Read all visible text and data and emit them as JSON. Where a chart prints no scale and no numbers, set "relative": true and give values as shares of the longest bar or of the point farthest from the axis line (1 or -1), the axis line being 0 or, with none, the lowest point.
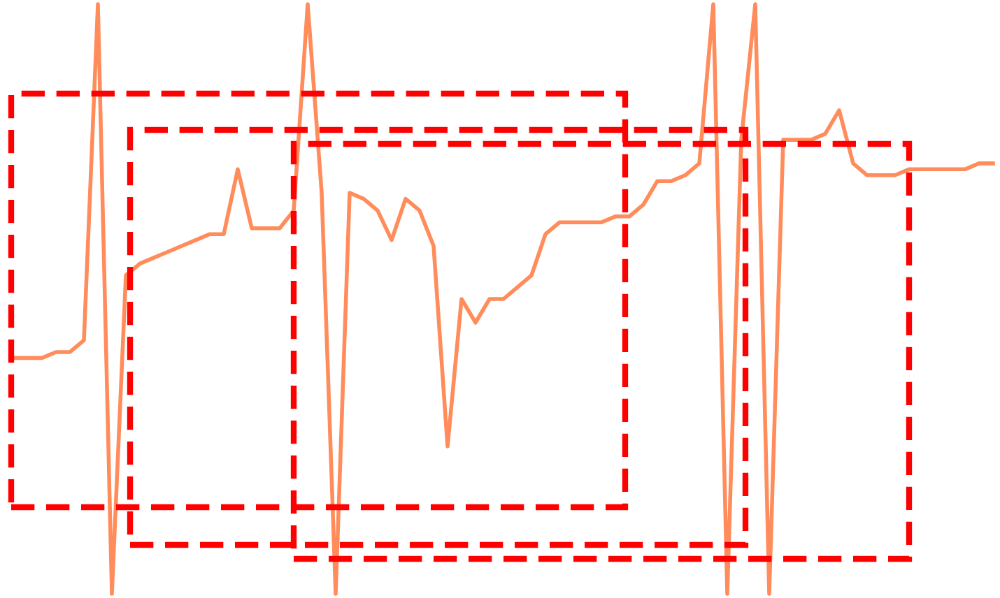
{
  "chart_data": {
    "type": "line",
    "relative": true,
    "categories": [
      null,
      null,
      null,
      null,
      null,
      null,
      null,
      null,
      null,
      null,
      null,
      null,
      null,
      null,
      null,
      null,
      null,
      null,
      null,
      null,
      null,
      null,
      null,
      null,
      null,
      null,
      null,
      null,
      null,
      null,
      null,
      null,
      null,
      null,
      null,
      null,
      null,
      null,
      null,
      null,
      null,
      null,
      null,
      null,
      null,
      null,
      null,
      null,
      null,
      null,
      null,
      null,
      null,
      null,
      null,
      null,
      null,
      null,
      null,
      null,
      null,
      null,
      null,
      null,
      null,
      null,
      null,
      null,
      null,
      null,
      null
    ],
    "series": [
      {
        "color": "#ff8c5a",
        "values": [
          0.4,
          0.4,
          0.4,
          0.41,
          0.41,
          0.43,
          1,
          0,
          0.54,
          0.56,
          0.57,
          0.58,
          0.59,
          0.6,
          0.61,
          0.61,
          0.72,
          0.62,
          0.62,
          0.62,
          0.65,
          1,
          0.68,
          0,
          0.68,
          0.67,
          0.65,
          0.6,
          0.67,
          0.65,
          0.59,
          0.25,
          0.5,
          0.46,
          0.5,
          0.5,
          0.52,
          0.54,
          0.61,
          0.63,
          0.63,
          0.63,
          0.63,
          0.64,
          0.64,
          0.66,
          0.7,
          0.7,
          0.71,
          0.73,
          1,
          0,
          0.77,
          1,
          0,
          0.77,
          0.77,
          0.77,
          0.78,
          0.82,
          0.73,
          0.71,
          0.71,
          0.71,
          0.72,
          0.72,
          0.72,
          0.72,
          0.72,
          0.73,
          0.73
        ]
      }
    ]
  }
}
